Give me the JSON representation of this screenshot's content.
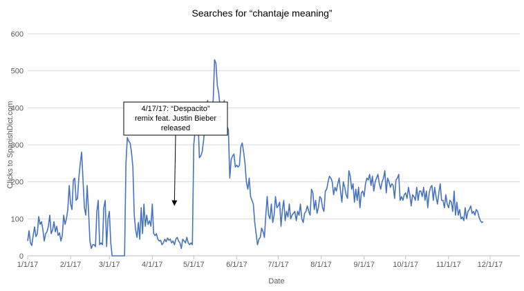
{
  "chart_data": {
    "type": "line",
    "title": "Searches for “chantaje meaning”",
    "xlabel": "Date",
    "ylabel": "Clicks to SpanishDict.com",
    "ylim": [
      0,
      600
    ],
    "yticks": [
      0,
      100,
      200,
      300,
      400,
      500,
      600
    ],
    "xticks": [
      "1/1/17",
      "2/1/17",
      "3/1/17",
      "4/1/17",
      "5/1/17",
      "6/1/17",
      "7/1/17",
      "8/1/17",
      "9/1/17",
      "10/1/17",
      "11/1/17",
      "12/1/17"
    ],
    "xtick_days": [
      0,
      31,
      59,
      90,
      120,
      151,
      181,
      212,
      243,
      273,
      304,
      334
    ],
    "x_range_days": [
      0,
      352
    ],
    "grid": "horizontal",
    "line_color": "#4472c4",
    "series": [
      {
        "name": "",
        "points": [
          [
            0,
            40
          ],
          [
            1,
            68
          ],
          [
            2,
            35
          ],
          [
            3,
            28
          ],
          [
            4,
            55
          ],
          [
            5,
            78
          ],
          [
            6,
            52
          ],
          [
            7,
            60
          ],
          [
            8,
            106
          ],
          [
            9,
            85
          ],
          [
            10,
            92
          ],
          [
            11,
            72
          ],
          [
            12,
            40
          ],
          [
            13,
            60
          ],
          [
            14,
            65
          ],
          [
            15,
            80
          ],
          [
            16,
            110
          ],
          [
            17,
            60
          ],
          [
            18,
            70
          ],
          [
            19,
            92
          ],
          [
            20,
            65
          ],
          [
            21,
            80
          ],
          [
            22,
            55
          ],
          [
            23,
            62
          ],
          [
            24,
            40
          ],
          [
            25,
            55
          ],
          [
            26,
            110
          ],
          [
            27,
            85
          ],
          [
            28,
            100
          ],
          [
            29,
            125
          ],
          [
            30,
            190
          ],
          [
            31,
            140
          ],
          [
            32,
            125
          ],
          [
            33,
            205
          ],
          [
            34,
            210
          ],
          [
            35,
            150
          ],
          [
            36,
            155
          ],
          [
            37,
            212
          ],
          [
            38,
            250
          ],
          [
            39,
            280
          ],
          [
            40,
            205
          ],
          [
            41,
            130
          ],
          [
            42,
            110
          ],
          [
            43,
            190
          ],
          [
            44,
            120
          ],
          [
            45,
            40
          ],
          [
            46,
            20
          ],
          [
            47,
            30
          ],
          [
            48,
            30
          ],
          [
            49,
            25
          ],
          [
            50,
            120
          ],
          [
            51,
            150
          ],
          [
            52,
            30
          ],
          [
            53,
            35
          ],
          [
            54,
            30
          ],
          [
            55,
            130
          ],
          [
            56,
            150
          ],
          [
            57,
            25
          ],
          [
            58,
            100
          ],
          [
            59,
            120
          ],
          [
            60,
            35
          ],
          [
            61,
            0
          ],
          [
            62,
            0
          ],
          [
            63,
            0
          ],
          [
            64,
            0
          ],
          [
            65,
            0
          ],
          [
            66,
            0
          ],
          [
            67,
            0
          ],
          [
            68,
            0
          ],
          [
            69,
            0
          ],
          [
            70,
            0
          ],
          [
            71,
            250
          ],
          [
            72,
            320
          ],
          [
            73,
            310
          ],
          [
            74,
            305
          ],
          [
            75,
            280
          ],
          [
            76,
            240
          ],
          [
            77,
            110
          ],
          [
            78,
            70
          ],
          [
            79,
            50
          ],
          [
            80,
            90
          ],
          [
            81,
            45
          ],
          [
            82,
            130
          ],
          [
            83,
            60
          ],
          [
            84,
            140
          ],
          [
            85,
            80
          ],
          [
            86,
            110
          ],
          [
            87,
            85
          ],
          [
            88,
            95
          ],
          [
            89,
            80
          ],
          [
            90,
            140
          ],
          [
            91,
            60
          ],
          [
            92,
            55
          ],
          [
            93,
            60
          ],
          [
            94,
            45
          ],
          [
            95,
            40
          ],
          [
            96,
            42
          ],
          [
            97,
            30
          ],
          [
            98,
            35
          ],
          [
            99,
            45
          ],
          [
            100,
            38
          ],
          [
            101,
            48
          ],
          [
            102,
            42
          ],
          [
            103,
            45
          ],
          [
            104,
            35
          ],
          [
            105,
            40
          ],
          [
            106,
            30
          ],
          [
            107,
            45
          ],
          [
            108,
            50
          ],
          [
            109,
            40
          ],
          [
            110,
            35
          ],
          [
            111,
            20
          ],
          [
            112,
            45
          ],
          [
            113,
            40
          ],
          [
            114,
            35
          ],
          [
            115,
            50
          ],
          [
            116,
            35
          ],
          [
            117,
            30
          ],
          [
            118,
            35
          ],
          [
            119,
            30
          ],
          [
            120,
            300
          ],
          [
            121,
            340
          ],
          [
            122,
            365
          ],
          [
            123,
            380
          ],
          [
            124,
            265
          ],
          [
            125,
            270
          ],
          [
            126,
            280
          ],
          [
            127,
            310
          ],
          [
            128,
            350
          ],
          [
            129,
            400
          ],
          [
            130,
            420
          ],
          [
            131,
            360
          ],
          [
            132,
            340
          ],
          [
            133,
            400
          ],
          [
            134,
            420
          ],
          [
            135,
            530
          ],
          [
            136,
            520
          ],
          [
            137,
            460
          ],
          [
            138,
            440
          ],
          [
            139,
            400
          ],
          [
            140,
            395
          ],
          [
            141,
            390
          ],
          [
            142,
            420
          ],
          [
            143,
            340
          ],
          [
            144,
            350
          ],
          [
            145,
            340
          ],
          [
            146,
            210
          ],
          [
            147,
            260
          ],
          [
            148,
            270
          ],
          [
            149,
            275
          ],
          [
            150,
            240
          ],
          [
            151,
            245
          ],
          [
            152,
            240
          ],
          [
            153,
            245
          ],
          [
            154,
            295
          ],
          [
            155,
            305
          ],
          [
            156,
            280
          ],
          [
            157,
            250
          ],
          [
            158,
            200
          ],
          [
            159,
            180
          ],
          [
            160,
            210
          ],
          [
            161,
            160
          ],
          [
            162,
            150
          ],
          [
            163,
            140
          ],
          [
            164,
            90
          ],
          [
            165,
            60
          ],
          [
            166,
            30
          ],
          [
            167,
            45
          ],
          [
            168,
            50
          ],
          [
            169,
            75
          ],
          [
            170,
            65
          ],
          [
            171,
            50
          ],
          [
            172,
            110
          ],
          [
            173,
            160
          ],
          [
            174,
            110
          ],
          [
            175,
            100
          ],
          [
            176,
            140
          ],
          [
            177,
            90
          ],
          [
            178,
            110
          ],
          [
            179,
            160
          ],
          [
            180,
            130
          ],
          [
            181,
            135
          ],
          [
            182,
            145
          ],
          [
            183,
            80
          ],
          [
            184,
            125
          ],
          [
            185,
            150
          ],
          [
            186,
            95
          ],
          [
            187,
            120
          ],
          [
            188,
            105
          ],
          [
            189,
            140
          ],
          [
            190,
            100
          ],
          [
            191,
            110
          ],
          [
            192,
            115
          ],
          [
            193,
            120
          ],
          [
            194,
            95
          ],
          [
            195,
            120
          ],
          [
            196,
            110
          ],
          [
            197,
            140
          ],
          [
            198,
            100
          ],
          [
            199,
            90
          ],
          [
            200,
            115
          ],
          [
            201,
            120
          ],
          [
            202,
            135
          ],
          [
            203,
            120
          ],
          [
            204,
            110
          ],
          [
            205,
            180
          ],
          [
            206,
            170
          ],
          [
            207,
            125
          ],
          [
            208,
            150
          ],
          [
            209,
            115
          ],
          [
            210,
            130
          ],
          [
            211,
            160
          ],
          [
            212,
            155
          ],
          [
            213,
            130
          ],
          [
            214,
            120
          ],
          [
            215,
            175
          ],
          [
            216,
            180
          ],
          [
            217,
            200
          ],
          [
            218,
            215
          ],
          [
            219,
            210
          ],
          [
            220,
            200
          ],
          [
            221,
            165
          ],
          [
            222,
            185
          ],
          [
            223,
            175
          ],
          [
            224,
            195
          ],
          [
            225,
            210
          ],
          [
            226,
            175
          ],
          [
            227,
            145
          ],
          [
            228,
            200
          ],
          [
            229,
            185
          ],
          [
            230,
            165
          ],
          [
            231,
            155
          ],
          [
            232,
            230
          ],
          [
            233,
            215
          ],
          [
            234,
            180
          ],
          [
            235,
            195
          ],
          [
            236,
            145
          ],
          [
            237,
            180
          ],
          [
            238,
            150
          ],
          [
            239,
            185
          ],
          [
            240,
            130
          ],
          [
            241,
            170
          ],
          [
            242,
            175
          ],
          [
            243,
            160
          ],
          [
            244,
            195
          ],
          [
            245,
            210
          ],
          [
            246,
            205
          ],
          [
            247,
            220
          ],
          [
            248,
            190
          ],
          [
            249,
            215
          ],
          [
            250,
            175
          ],
          [
            251,
            200
          ],
          [
            252,
            210
          ],
          [
            253,
            220
          ],
          [
            254,
            195
          ],
          [
            255,
            180
          ],
          [
            256,
            200
          ],
          [
            257,
            210
          ],
          [
            258,
            230
          ],
          [
            259,
            170
          ],
          [
            260,
            210
          ],
          [
            261,
            200
          ],
          [
            262,
            185
          ],
          [
            263,
            195
          ],
          [
            264,
            190
          ],
          [
            265,
            155
          ],
          [
            266,
            205
          ],
          [
            267,
            210
          ],
          [
            268,
            220
          ],
          [
            269,
            150
          ],
          [
            270,
            160
          ],
          [
            271,
            150
          ],
          [
            272,
            165
          ],
          [
            273,
            170
          ],
          [
            274,
            155
          ],
          [
            275,
            185
          ],
          [
            276,
            165
          ],
          [
            277,
            135
          ],
          [
            278,
            165
          ],
          [
            279,
            160
          ],
          [
            280,
            150
          ],
          [
            281,
            185
          ],
          [
            282,
            150
          ],
          [
            283,
            175
          ],
          [
            284,
            175
          ],
          [
            285,
            160
          ],
          [
            286,
            185
          ],
          [
            287,
            150
          ],
          [
            288,
            175
          ],
          [
            289,
            130
          ],
          [
            290,
            170
          ],
          [
            291,
            185
          ],
          [
            292,
            190
          ],
          [
            293,
            150
          ],
          [
            294,
            185
          ],
          [
            295,
            160
          ],
          [
            296,
            140
          ],
          [
            297,
            170
          ],
          [
            298,
            195
          ],
          [
            299,
            150
          ],
          [
            300,
            150
          ],
          [
            301,
            130
          ],
          [
            302,
            165
          ],
          [
            303,
            140
          ],
          [
            304,
            130
          ],
          [
            305,
            150
          ],
          [
            306,
            145
          ],
          [
            307,
            120
          ],
          [
            308,
            175
          ],
          [
            309,
            110
          ],
          [
            310,
            145
          ],
          [
            311,
            110
          ],
          [
            312,
            125
          ],
          [
            313,
            100
          ],
          [
            314,
            105
          ],
          [
            315,
            95
          ],
          [
            316,
            130
          ],
          [
            317,
            100
          ],
          [
            318,
            120
          ],
          [
            319,
            125
          ],
          [
            320,
            135
          ],
          [
            321,
            115
          ],
          [
            322,
            120
          ],
          [
            323,
            110
          ],
          [
            324,
            125
          ],
          [
            325,
            120
          ],
          [
            326,
            105
          ],
          [
            327,
            95
          ],
          [
            328,
            90
          ],
          [
            329,
            92
          ]
        ]
      }
    ],
    "annotation": {
      "lines": [
        "4/17/17: “Despacito”",
        "remix feat. Justin Bieber",
        "released"
      ],
      "target_day": 106,
      "target_value": 135
    }
  }
}
